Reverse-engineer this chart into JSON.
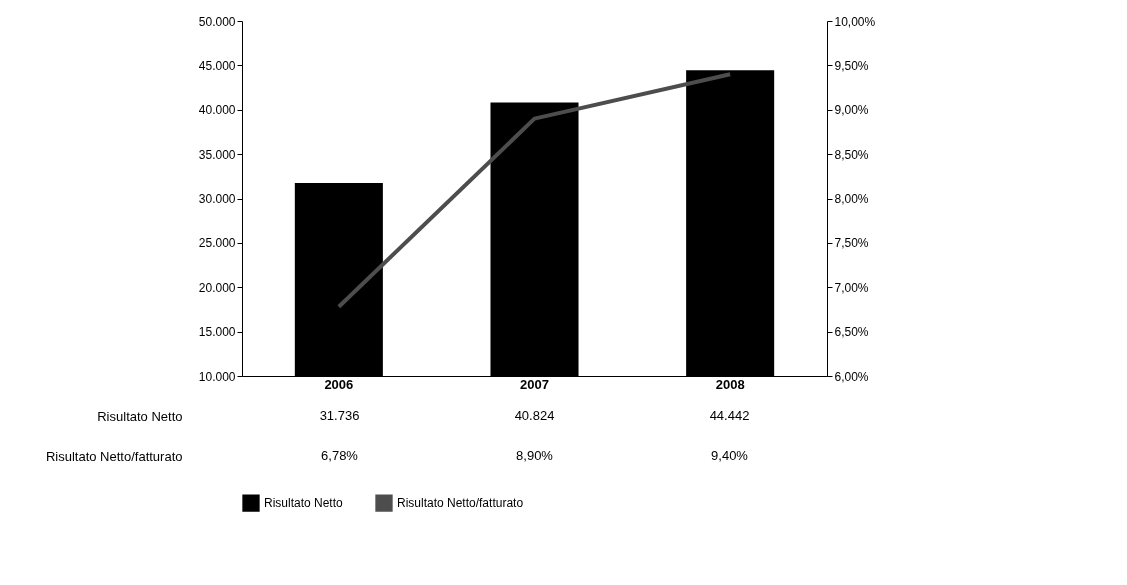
{
  "chart_data": {
    "type": "bar",
    "categories": [
      "2006",
      "2007",
      "2008"
    ],
    "series": [
      {
        "name": "Risultato Netto",
        "color": "#000000",
        "values": [
          31736,
          40824,
          44442
        ],
        "value_labels": [
          "31.736",
          "40.824",
          "44.442"
        ]
      },
      {
        "name": "Risultato Netto/fatturato",
        "type": "line",
        "axis": "y2",
        "color": "#4d4d4d",
        "values": [
          6.78,
          8.9,
          9.4
        ],
        "value_labels": [
          "6,78%",
          "8,90%",
          "9,40%"
        ]
      }
    ],
    "ylim": [
      10000,
      50000
    ],
    "yticks": [
      {
        "value": 10000,
        "label": "10.000"
      },
      {
        "value": 15000,
        "label": "15.000"
      },
      {
        "value": 20000,
        "label": "20.000"
      },
      {
        "value": 25000,
        "label": "25.000"
      },
      {
        "value": 30000,
        "label": "30.000"
      },
      {
        "value": 35000,
        "label": "35.000"
      },
      {
        "value": 40000,
        "label": "40.000"
      },
      {
        "value": 45000,
        "label": "45.000"
      },
      {
        "value": 50000,
        "label": "50.000"
      }
    ],
    "y2lim": [
      6,
      10
    ],
    "y2ticks": [
      {
        "value": 6,
        "label": "6,00%"
      },
      {
        "value": 6.5,
        "label": "6,50%"
      },
      {
        "value": 7,
        "label": "7,00%"
      },
      {
        "value": 7.5,
        "label": "7,50%"
      },
      {
        "value": 8,
        "label": "8,00%"
      },
      {
        "value": 8.5,
        "label": "8,50%"
      },
      {
        "value": 9,
        "label": "9,00%"
      },
      {
        "value": 9.5,
        "label": "9,50%"
      },
      {
        "value": 10,
        "label": "10,00%"
      }
    ],
    "grid": false,
    "legend": "bottom"
  }
}
